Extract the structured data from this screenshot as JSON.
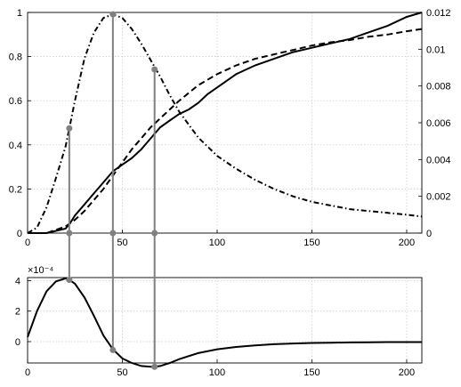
{
  "chart_data": [
    {
      "type": "line",
      "title": "",
      "xlabel": "",
      "ylabel": "",
      "xlim": [
        0,
        208
      ],
      "ylim": [
        0,
        1
      ],
      "y2lim": [
        0,
        0.012
      ],
      "grid": true,
      "xticks": [
        "0",
        "50",
        "100",
        "150",
        "200"
      ],
      "yticks": [
        "0",
        "0.2",
        "0.4",
        "0.6",
        "0.8",
        "1"
      ],
      "y2ticks": [
        "0",
        "0.002",
        "0.004",
        "0.006",
        "0.008",
        "0.01",
        "0.012"
      ],
      "series": [
        {
          "style": "solid",
          "axis": "left",
          "x": [
            0,
            10,
            20,
            22,
            25,
            30,
            35,
            40,
            45,
            50,
            55,
            60,
            65,
            70,
            75,
            80,
            85,
            90,
            95,
            100,
            110,
            120,
            130,
            140,
            150,
            160,
            170,
            180,
            190,
            200,
            208
          ],
          "y": [
            0,
            0,
            0.02,
            0.04,
            0.08,
            0.13,
            0.18,
            0.23,
            0.28,
            0.31,
            0.34,
            0.38,
            0.43,
            0.48,
            0.51,
            0.54,
            0.56,
            0.59,
            0.63,
            0.66,
            0.72,
            0.76,
            0.79,
            0.82,
            0.84,
            0.86,
            0.88,
            0.91,
            0.94,
            0.98,
            1.0
          ]
        },
        {
          "style": "dashed",
          "axis": "left",
          "x": [
            0,
            10,
            20,
            25,
            30,
            35,
            40,
            45,
            50,
            55,
            60,
            65,
            70,
            80,
            90,
            100,
            110,
            120,
            130,
            140,
            150,
            160,
            170,
            180,
            190,
            200,
            208
          ],
          "y": [
            0,
            0,
            0.03,
            0.06,
            0.1,
            0.15,
            0.2,
            0.26,
            0.32,
            0.38,
            0.43,
            0.48,
            0.52,
            0.6,
            0.67,
            0.72,
            0.76,
            0.79,
            0.81,
            0.83,
            0.85,
            0.865,
            0.875,
            0.89,
            0.9,
            0.915,
            0.925
          ]
        },
        {
          "style": "dash-dot",
          "axis": "right",
          "x": [
            0,
            5,
            10,
            15,
            20,
            22,
            25,
            30,
            35,
            40,
            45,
            50,
            55,
            60,
            65,
            70,
            75,
            80,
            90,
            100,
            110,
            120,
            130,
            140,
            150,
            160,
            170,
            180,
            190,
            200,
            208
          ],
          "y": [
            0,
            0.0003,
            0.0014,
            0.003,
            0.0047,
            0.0057,
            0.0072,
            0.0095,
            0.0109,
            0.0117,
            0.0119,
            0.0117,
            0.0111,
            0.0103,
            0.0094,
            0.0085,
            0.0075,
            0.0066,
            0.0052,
            0.0042,
            0.0035,
            0.0029,
            0.0024,
            0.002,
            0.0017,
            0.0015,
            0.0013,
            0.0012,
            0.0011,
            0.001,
            0.0009
          ]
        }
      ]
    },
    {
      "type": "line",
      "title": "",
      "xlabel": "",
      "ylabel": "",
      "exponent_label": "×10⁻⁴",
      "xlim": [
        0,
        208
      ],
      "ylim": [
        -1.4,
        4.2
      ],
      "grid": true,
      "xticks": [
        "0",
        "50",
        "100",
        "150",
        "200"
      ],
      "yticks": [
        "0",
        "2",
        "4"
      ],
      "series": [
        {
          "style": "solid",
          "x": [
            0,
            5,
            10,
            15,
            20,
            22,
            25,
            30,
            35,
            40,
            45,
            50,
            55,
            60,
            65,
            67,
            70,
            75,
            80,
            90,
            100,
            110,
            120,
            130,
            140,
            150,
            160,
            170,
            180,
            190,
            200,
            208
          ],
          "y": [
            0.3,
            2.0,
            3.3,
            3.95,
            4.15,
            4.05,
            3.8,
            2.9,
            1.7,
            0.4,
            -0.5,
            -1.1,
            -1.4,
            -1.6,
            -1.65,
            -1.65,
            -1.6,
            -1.4,
            -1.15,
            -0.75,
            -0.5,
            -0.35,
            -0.25,
            -0.17,
            -0.12,
            -0.09,
            -0.07,
            -0.05,
            -0.04,
            -0.03,
            -0.03,
            -0.03
          ]
        }
      ]
    }
  ],
  "markers": {
    "x": [
      22,
      45,
      67
    ],
    "top_y_right": [
      0.0057,
      0.0119,
      0.0089
    ],
    "top_base_y_right": [
      0,
      0,
      0
    ],
    "bottom_y": [
      4.05,
      -0.55,
      -1.65
    ]
  },
  "colors": {
    "line": "#000000",
    "marker": "#808080",
    "grid": "#c8c8c8"
  }
}
